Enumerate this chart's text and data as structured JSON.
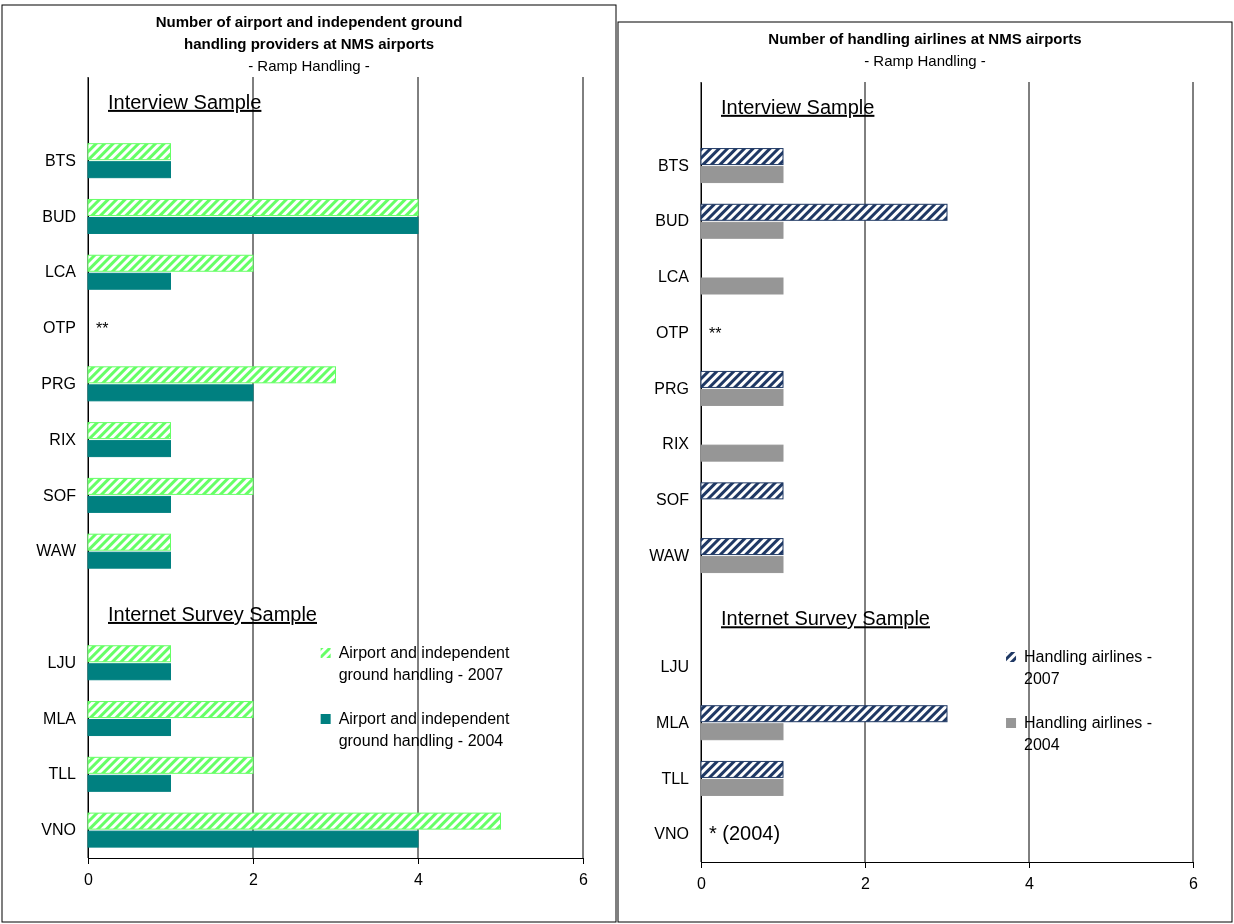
{
  "chart_data": [
    {
      "type": "bar",
      "orientation": "horizontal",
      "title": "Number of airport and independent ground handling providers at NMS airports",
      "subtitle": "- Ramp Handling -",
      "categories": [
        null,
        "BTS",
        "BUD",
        "LCA",
        "OTP",
        "PRG",
        "RIX",
        "SOF",
        "WAW",
        null,
        "LJU",
        "MLA",
        "TLL",
        "VNO"
      ],
      "series": [
        {
          "name": "Airport and independent ground handling - 2007",
          "color": "#66ff66",
          "values": [
            null,
            1,
            4,
            2,
            null,
            3,
            1,
            2,
            1,
            null,
            1,
            2,
            2,
            5
          ]
        },
        {
          "name": "Airport and independent ground handling - 2004",
          "color": "#008080",
          "values": [
            null,
            1,
            4,
            1,
            null,
            2,
            1,
            1,
            1,
            null,
            1,
            1,
            1,
            4
          ]
        }
      ],
      "xlim": [
        0,
        6
      ],
      "xticks": [
        0,
        2,
        4,
        6
      ],
      "grid": "x",
      "legend": "bottom right",
      "annotations": [
        "Interview Sample",
        "Internet Survey Sample",
        "**"
      ]
    },
    {
      "type": "bar",
      "orientation": "horizontal",
      "title": "Number of handling airlines at NMS airports",
      "subtitle": "- Ramp Handling -",
      "categories": [
        null,
        "BTS",
        "BUD",
        "LCA",
        "OTP",
        "PRG",
        "RIX",
        "SOF",
        "WAW",
        null,
        "LJU",
        "MLA",
        "TLL",
        "VNO"
      ],
      "series": [
        {
          "name": "Handling airlines - 2007",
          "color": "#1f3864",
          "values": [
            null,
            1,
            3,
            null,
            null,
            1,
            null,
            1,
            1,
            null,
            null,
            3,
            1,
            null
          ]
        },
        {
          "name": "Handling airlines - 2004",
          "color": "#969696",
          "values": [
            null,
            1,
            1,
            1,
            null,
            1,
            1,
            null,
            1,
            null,
            null,
            1,
            1,
            null
          ]
        }
      ],
      "xlim": [
        0,
        6
      ],
      "xticks": [
        0,
        2,
        4,
        6
      ],
      "grid": "x",
      "legend": "bottom right",
      "annotations": [
        "Interview Sample",
        "Internet Survey Sample",
        "**",
        "* (2004)"
      ]
    }
  ]
}
